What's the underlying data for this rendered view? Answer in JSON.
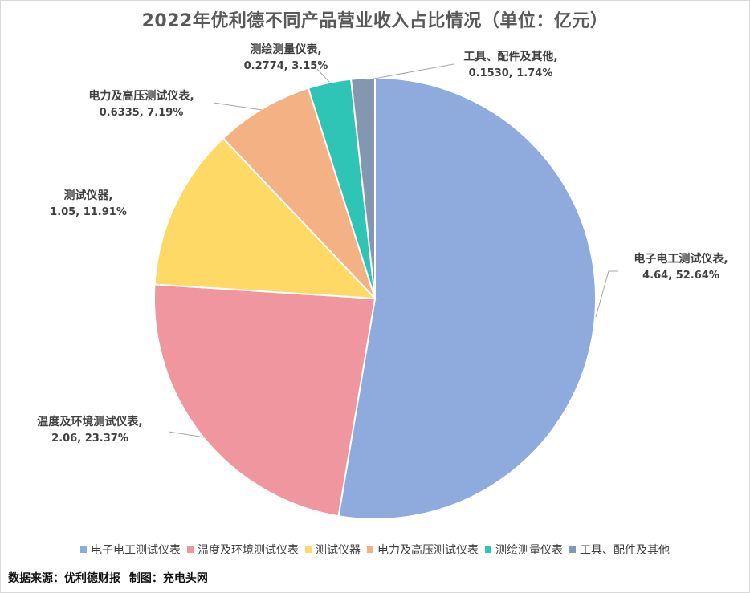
{
  "chart_data": {
    "type": "pie",
    "title": "2022年优利德不同产品营业收入占比情况（单位：亿元）",
    "slices": [
      {
        "name": "电子电工测试仪表",
        "value": 4.64,
        "percent": 52.64,
        "name_text": "电子电工测试仪表,",
        "value_text": "4.64, 52.64%",
        "color": "#8faadc"
      },
      {
        "name": "温度及环境测试仪表",
        "value": 2.06,
        "percent": 23.37,
        "name_text": "温度及环境测试仪表,",
        "value_text": "2.06, 23.37%",
        "color": "#f0969e"
      },
      {
        "name": "测试仪器",
        "value": 1.05,
        "percent": 11.91,
        "name_text": "测试仪器,",
        "value_text": "1.05, 11.91%",
        "color": "#ffd966"
      },
      {
        "name": "电力及高压测试仪表",
        "value": 0.6335,
        "percent": 7.19,
        "name_text": "电力及高压测试仪表,",
        "value_text": "0.6335, 7.19%",
        "color": "#f4b183"
      },
      {
        "name": "测绘测量仪表",
        "value": 0.2774,
        "percent": 3.15,
        "name_text": "测绘测量仪表,",
        "value_text": "0.2774, 3.15%",
        "color": "#2ec4b6"
      },
      {
        "name": "工具、配件及其他",
        "value": 0.153,
        "percent": 1.74,
        "name_text": "工具、配件及其他,",
        "value_text": "0.1530, 1.74%",
        "color": "#8497b0"
      }
    ],
    "legend_position": "bottom"
  },
  "footer": {
    "source": "数据来源：优利德财报",
    "credit": "制图：充电头网"
  }
}
